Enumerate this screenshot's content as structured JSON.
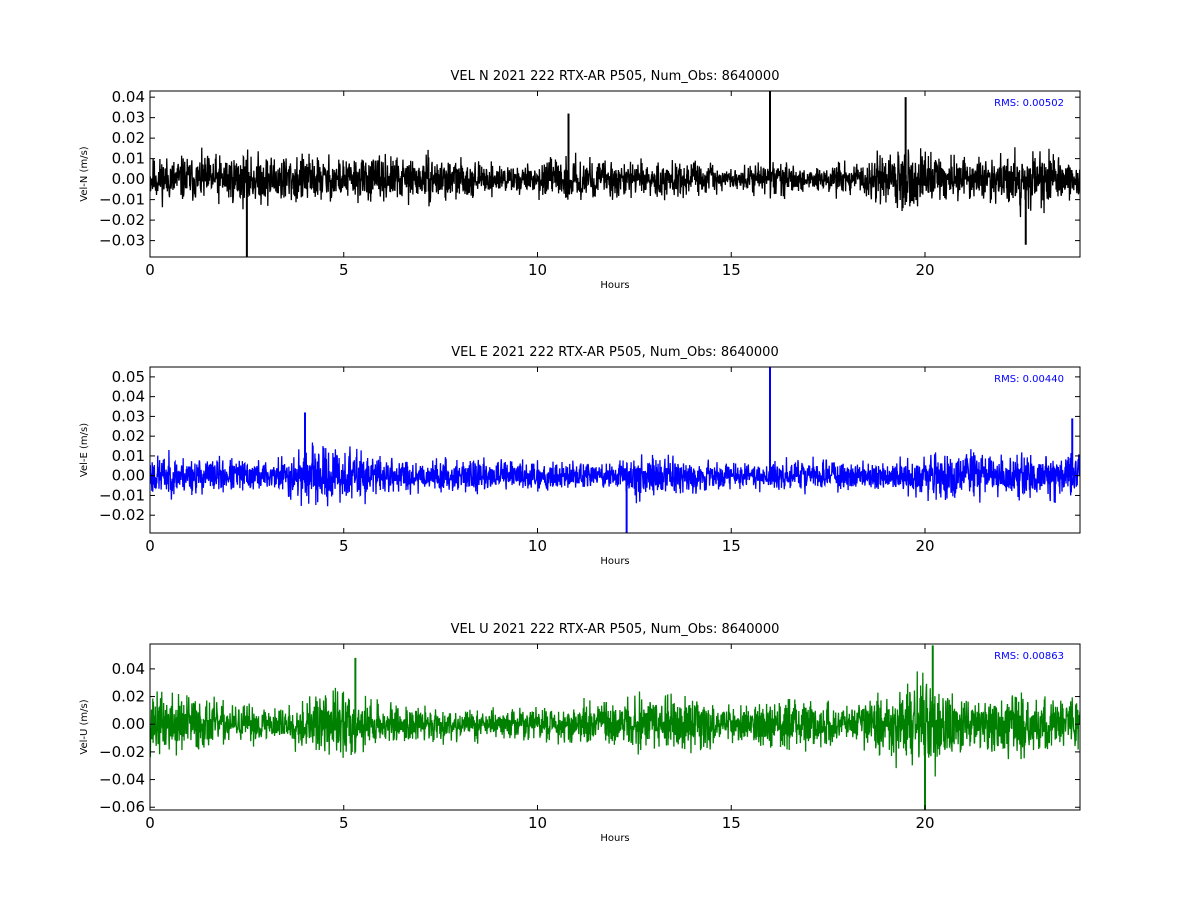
{
  "chart_data": [
    {
      "type": "line",
      "title": "VEL N 2021 222 RTX-AR  P505, Num_Obs: 8640000",
      "xlabel": "Hours",
      "ylabel": "Vel-N (m/s)",
      "color": "#000000",
      "xlim": [
        0,
        24
      ],
      "ylim": [
        -0.038,
        0.043
      ],
      "xticks": [
        0,
        5,
        10,
        15,
        20
      ],
      "yticks": [
        -0.03,
        -0.02,
        -0.01,
        0.0,
        0.01,
        0.02,
        0.03,
        0.04
      ],
      "ytick_labels": [
        "−0.03",
        "−0.02",
        "−0.01",
        "0.00",
        "0.01",
        "0.02",
        "0.03",
        "0.04"
      ],
      "annotation": "RMS:  0.00502",
      "annotation_color": "#0000ff",
      "seed": 11,
      "envelope": [
        {
          "x": 0.0,
          "a": 0.014
        },
        {
          "x": 2.0,
          "a": 0.016
        },
        {
          "x": 3.5,
          "a": 0.017
        },
        {
          "x": 5.0,
          "a": 0.014
        },
        {
          "x": 7.5,
          "a": 0.014
        },
        {
          "x": 8.5,
          "a": 0.01
        },
        {
          "x": 9.5,
          "a": 0.009
        },
        {
          "x": 11.0,
          "a": 0.014
        },
        {
          "x": 13.0,
          "a": 0.011
        },
        {
          "x": 14.0,
          "a": 0.012
        },
        {
          "x": 15.0,
          "a": 0.006
        },
        {
          "x": 16.3,
          "a": 0.012
        },
        {
          "x": 17.0,
          "a": 0.007
        },
        {
          "x": 18.5,
          "a": 0.012
        },
        {
          "x": 19.5,
          "a": 0.024
        },
        {
          "x": 21.0,
          "a": 0.012
        },
        {
          "x": 22.5,
          "a": 0.02
        },
        {
          "x": 24.0,
          "a": 0.011
        }
      ],
      "spikes": [
        {
          "x": 16.0,
          "y": 0.043
        },
        {
          "x": 2.5,
          "y": -0.038
        },
        {
          "x": 10.8,
          "y": 0.032
        },
        {
          "x": 19.5,
          "y": 0.04
        },
        {
          "x": 22.6,
          "y": -0.032
        }
      ]
    },
    {
      "type": "line",
      "title": "VEL E 2021 222 RTX-AR  P505, Num_Obs: 8640000",
      "xlabel": "Hours",
      "ylabel": "Vel-E (m/s)",
      "color": "#0000ff",
      "xlim": [
        0,
        24
      ],
      "ylim": [
        -0.029,
        0.055
      ],
      "xticks": [
        0,
        5,
        10,
        15,
        20
      ],
      "yticks": [
        -0.02,
        -0.01,
        0.0,
        0.01,
        0.02,
        0.03,
        0.04,
        0.05
      ],
      "ytick_labels": [
        "−0.02",
        "−0.01",
        "0.00",
        "0.01",
        "0.02",
        "0.03",
        "0.04",
        "0.05"
      ],
      "annotation": "RMS:  0.00440",
      "annotation_color": "#0000ff",
      "seed": 23,
      "envelope": [
        {
          "x": 0.0,
          "a": 0.014
        },
        {
          "x": 3.0,
          "a": 0.01
        },
        {
          "x": 4.0,
          "a": 0.018
        },
        {
          "x": 5.0,
          "a": 0.02
        },
        {
          "x": 6.0,
          "a": 0.012
        },
        {
          "x": 8.0,
          "a": 0.01
        },
        {
          "x": 10.0,
          "a": 0.011
        },
        {
          "x": 12.0,
          "a": 0.008
        },
        {
          "x": 12.5,
          "a": 0.018
        },
        {
          "x": 14.0,
          "a": 0.011
        },
        {
          "x": 15.5,
          "a": 0.008
        },
        {
          "x": 17.0,
          "a": 0.011
        },
        {
          "x": 19.0,
          "a": 0.01
        },
        {
          "x": 20.5,
          "a": 0.016
        },
        {
          "x": 22.0,
          "a": 0.014
        },
        {
          "x": 24.0,
          "a": 0.015
        }
      ],
      "spikes": [
        {
          "x": 16.0,
          "y": 0.055
        },
        {
          "x": 4.0,
          "y": 0.032
        },
        {
          "x": 12.3,
          "y": -0.029
        },
        {
          "x": 23.8,
          "y": 0.029
        }
      ]
    },
    {
      "type": "line",
      "title": "VEL U 2021 222 RTX-AR  P505, Num_Obs: 8640000",
      "xlabel": "Hours",
      "ylabel": "Vel-U (m/s)",
      "color": "#008000",
      "xlim": [
        0,
        24
      ],
      "ylim": [
        -0.062,
        0.058
      ],
      "xticks": [
        0,
        5,
        10,
        15,
        20
      ],
      "yticks": [
        -0.06,
        -0.04,
        -0.02,
        0.0,
        0.02,
        0.04
      ],
      "ytick_labels": [
        "−0.06",
        "−0.04",
        "−0.02",
        "0.00",
        "0.02",
        "0.04"
      ],
      "annotation": "RMS:  0.00863",
      "annotation_color": "#0000ff",
      "seed": 37,
      "envelope": [
        {
          "x": 0.0,
          "a": 0.03
        },
        {
          "x": 1.0,
          "a": 0.03
        },
        {
          "x": 2.0,
          "a": 0.018
        },
        {
          "x": 3.5,
          "a": 0.018
        },
        {
          "x": 5.0,
          "a": 0.036
        },
        {
          "x": 6.0,
          "a": 0.018
        },
        {
          "x": 8.0,
          "a": 0.016
        },
        {
          "x": 9.0,
          "a": 0.013
        },
        {
          "x": 11.0,
          "a": 0.02
        },
        {
          "x": 13.5,
          "a": 0.03
        },
        {
          "x": 15.0,
          "a": 0.015
        },
        {
          "x": 16.5,
          "a": 0.03
        },
        {
          "x": 18.0,
          "a": 0.016
        },
        {
          "x": 20.0,
          "a": 0.045
        },
        {
          "x": 21.0,
          "a": 0.026
        },
        {
          "x": 22.5,
          "a": 0.032
        },
        {
          "x": 24.0,
          "a": 0.022
        }
      ],
      "spikes": [
        {
          "x": 20.0,
          "y": -0.062
        },
        {
          "x": 20.2,
          "y": 0.057
        },
        {
          "x": 5.3,
          "y": 0.048
        }
      ]
    }
  ]
}
